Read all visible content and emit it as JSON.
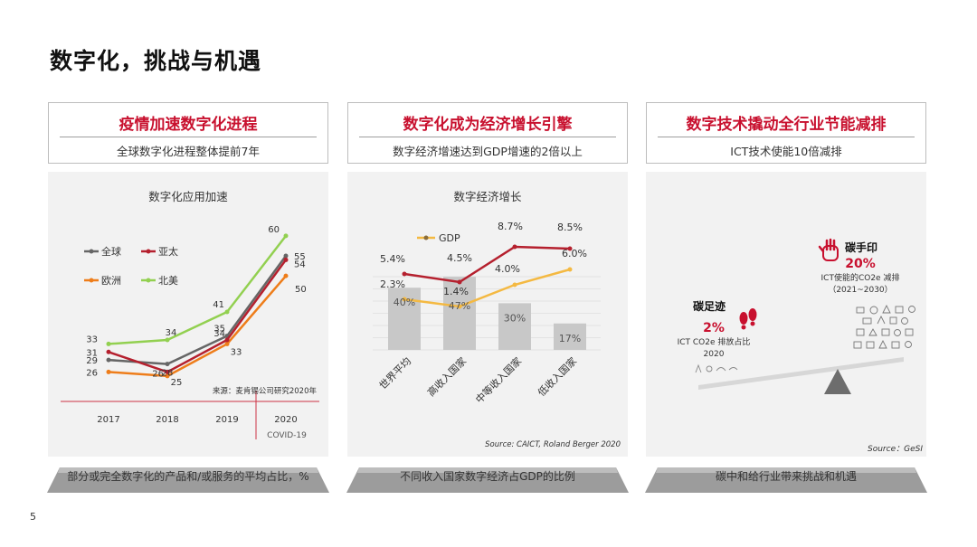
{
  "page": {
    "title": "数字化，挑战与机遇",
    "number": "5"
  },
  "panels": [
    {
      "title": "疫情加速数字化进程",
      "subtitle": "全球数字化进程整体提前7年",
      "caption": "部分或完全数字化的产品和/或服务的平均占比，%"
    },
    {
      "title": "数字化成为经济增长引擎",
      "subtitle": "数字经济增速达到GDP增速的2倍以上",
      "caption": "不同收入国家数字经济占GDP的比例"
    },
    {
      "title": "数字技术撬动全行业节能减排",
      "subtitle": "ICT技术使能10倍减排",
      "caption": "碳中和给行业带来挑战和机遇"
    }
  ],
  "chart_data": [
    {
      "type": "line",
      "title": "数字化应用加速",
      "categories": [
        "2017",
        "2018",
        "2019",
        "2020"
      ],
      "series": [
        {
          "name": "全球",
          "color": "#666666",
          "values": [
            29,
            28,
            35,
            55
          ]
        },
        {
          "name": "亚太",
          "color": "#b5202e",
          "values": [
            31,
            26,
            34,
            54
          ]
        },
        {
          "name": "欧洲",
          "color": "#ee7d1a",
          "values": [
            26,
            25,
            33,
            50
          ]
        },
        {
          "name": "北美",
          "color": "#92d050",
          "values": [
            33,
            34,
            41,
            60
          ]
        }
      ],
      "source": "来源：麦肯锡公司研究2020年",
      "annotation": "COVID-19",
      "ylim": [
        20,
        62
      ]
    },
    {
      "type": "bar+line",
      "title": "数字经济增长",
      "categories": [
        "世界平均",
        "高收入国家",
        "中等收入国家",
        "低收入国家"
      ],
      "bars": {
        "values": [
          "40%",
          "47%",
          "30%",
          "17%"
        ],
        "numeric": [
          40,
          47,
          30,
          17
        ],
        "color": "#c8c8c8"
      },
      "series": [
        {
          "name": "",
          "color": "#b5202e",
          "values": [
            5.4,
            4.5,
            8.7,
            8.5
          ],
          "labels": [
            "5.4%",
            "4.5%",
            "8.7%",
            "8.5%"
          ]
        },
        {
          "name": "GDP",
          "color": "#f4b942",
          "values": [
            2.3,
            1.4,
            4.0,
            6.0
          ],
          "labels": [
            "2.3%",
            "1.4%",
            "4.0%",
            "6.0%"
          ]
        }
      ],
      "source": "Source: CAICT, Roland Berger 2020"
    },
    {
      "type": "illustration",
      "footprint": {
        "title": "碳足迹",
        "value": "2%",
        "line1": "ICT CO2e 排放占比",
        "line2": "2020"
      },
      "handprint": {
        "title": "碳手印",
        "value": "20%",
        "line1": "ICT使能的CO2e 减排",
        "line2": "（2021~2030）"
      },
      "source": "Source：GeSI",
      "accent": "#c8102e"
    }
  ]
}
